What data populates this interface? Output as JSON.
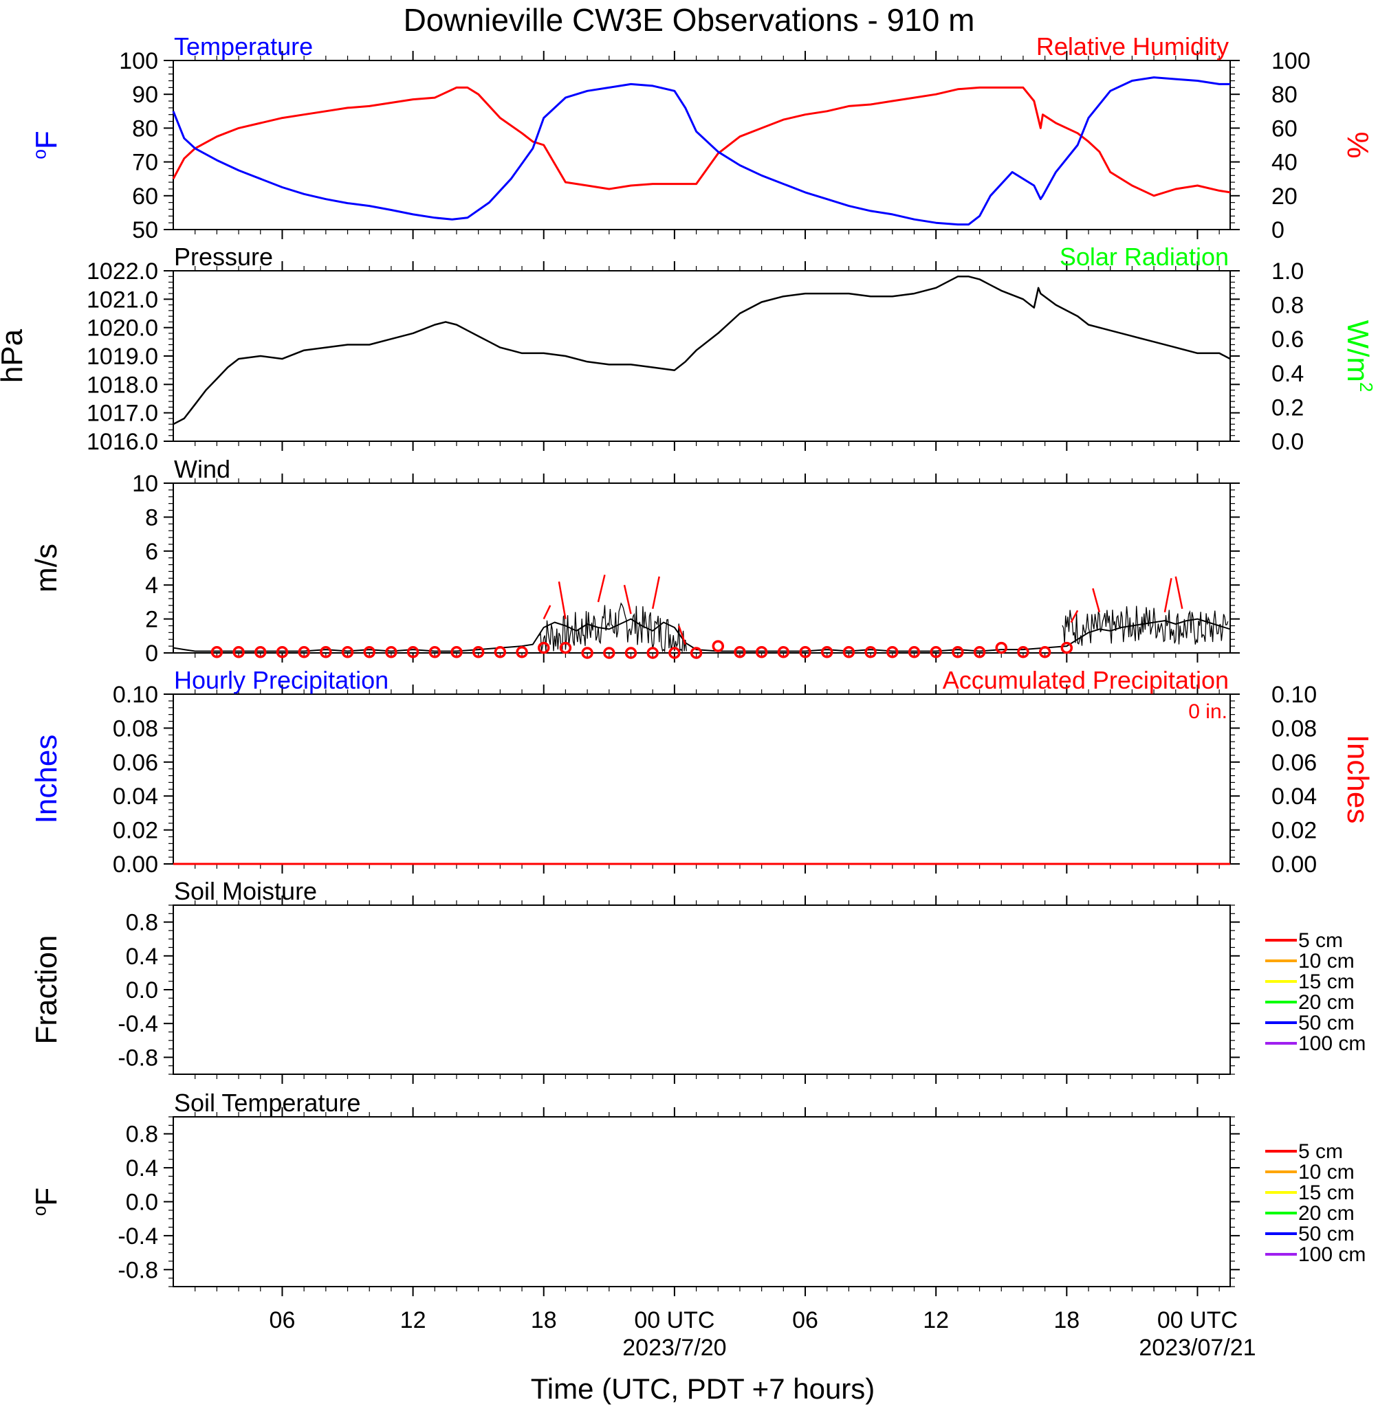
{
  "title": "Downieville CW3E Observations - 910 m",
  "x_axis": {
    "label": "Time (UTC, PDT +7 hours)",
    "range_hours": [
      0,
      48.5
    ],
    "ticks": [
      {
        "h": 5,
        "label": "06"
      },
      {
        "h": 11,
        "label": "12"
      },
      {
        "h": 17,
        "label": "18"
      },
      {
        "h": 23,
        "label": "00 UTC",
        "sublabel": "2023/7/20"
      },
      {
        "h": 29,
        "label": "06"
      },
      {
        "h": 35,
        "label": "12"
      },
      {
        "h": 41,
        "label": "18"
      },
      {
        "h": 47,
        "label": "00 UTC",
        "sublabel": "2023/07/21"
      }
    ]
  },
  "colors": {
    "temperature": "#0000ff",
    "humidity": "#ff0000",
    "pressure": "#000000",
    "solar": "#00ff00",
    "wind": "#000000",
    "wind_barb": "#ff0000",
    "hourly_precip": "#0000ff",
    "accum_precip": "#ff0000"
  },
  "panels": {
    "temp_rh": {
      "left_title": "Temperature",
      "right_title": "Relative Humidity",
      "left_unit": "oF",
      "right_unit": "%",
      "left_ticks": [
        "50",
        "60",
        "70",
        "80",
        "90",
        "100"
      ],
      "right_ticks": [
        "0",
        "20",
        "40",
        "60",
        "80",
        "100"
      ]
    },
    "pressure": {
      "left_title": "Pressure",
      "right_title": "Solar Radiation",
      "left_unit": "hPa",
      "right_unit": "W/m",
      "right_unit_sup": "2",
      "left_ticks": [
        "1016.0",
        "1017.0",
        "1018.0",
        "1019.0",
        "1020.0",
        "1021.0",
        "1022.0"
      ],
      "right_ticks": [
        "0.0",
        "0.2",
        "0.4",
        "0.6",
        "0.8",
        "1.0"
      ]
    },
    "wind": {
      "left_title": "Wind",
      "left_unit": "m/s",
      "left_ticks": [
        "0",
        "2",
        "4",
        "6",
        "8",
        "10"
      ]
    },
    "precip": {
      "left_title": "Hourly Precipitation",
      "right_title": "Accumulated Precipitation",
      "total_label": "0 in.",
      "left_unit": "Inches",
      "right_unit": "Inches",
      "left_ticks": [
        "0.00",
        "0.02",
        "0.04",
        "0.06",
        "0.08",
        "0.10"
      ],
      "right_ticks": [
        "0.00",
        "0.02",
        "0.04",
        "0.06",
        "0.08",
        "0.10"
      ]
    },
    "soil_moisture": {
      "left_title": "Soil Moisture",
      "left_unit": "Fraction",
      "left_ticks": [
        "-0.8",
        "-0.4",
        "0.0",
        "0.4",
        "0.8"
      ],
      "legend": [
        {
          "label": "5 cm",
          "color": "#ff0000"
        },
        {
          "label": "10 cm",
          "color": "#ffa500"
        },
        {
          "label": "15 cm",
          "color": "#ffff00"
        },
        {
          "label": "20 cm",
          "color": "#00ff00"
        },
        {
          "label": "50 cm",
          "color": "#0000ff"
        },
        {
          "label": "100 cm",
          "color": "#a020f0"
        }
      ]
    },
    "soil_temperature": {
      "left_title": "Soil Temperature",
      "left_unit": "oF",
      "left_ticks": [
        "-0.8",
        "-0.4",
        "0.0",
        "0.4",
        "0.8"
      ],
      "legend": [
        {
          "label": "5 cm",
          "color": "#ff0000"
        },
        {
          "label": "10 cm",
          "color": "#ffa500"
        },
        {
          "label": "15 cm",
          "color": "#ffff00"
        },
        {
          "label": "20 cm",
          "color": "#00ff00"
        },
        {
          "label": "50 cm",
          "color": "#0000ff"
        },
        {
          "label": "100 cm",
          "color": "#a020f0"
        }
      ]
    }
  },
  "chart_data": [
    {
      "type": "line",
      "title": "Temperature",
      "ylabel": "oF",
      "ylim": [
        50,
        100
      ],
      "series": [
        {
          "name": "Temperature",
          "x": [
            0,
            0.5,
            1,
            2,
            3,
            4,
            5,
            6,
            7,
            8,
            9,
            10,
            11,
            12,
            12.8,
            13.5,
            14.5,
            15.5,
            16.5,
            17,
            18,
            19,
            20,
            21,
            22,
            23,
            23.5,
            24,
            25,
            26,
            27,
            28,
            29,
            30,
            31,
            32,
            33,
            34,
            35,
            36,
            36.5,
            37,
            37.5,
            38.5,
            39.5,
            39.8,
            39.9,
            40.5,
            41.5,
            42,
            43,
            44,
            45,
            46,
            47,
            48,
            48.5
          ],
          "y": [
            85,
            77,
            74,
            70.5,
            67.5,
            65,
            62.5,
            60.5,
            59,
            57.8,
            57,
            55.8,
            54.5,
            53.5,
            53,
            53.5,
            58,
            65,
            74,
            83,
            89,
            91,
            92,
            93,
            92.5,
            91,
            86,
            79,
            73,
            69,
            66,
            63.5,
            61,
            59,
            57,
            55.5,
            54.5,
            53,
            52,
            51.5,
            51.5,
            54,
            60,
            67,
            63,
            59,
            60,
            67,
            75,
            83,
            91,
            94,
            95,
            94.5,
            94,
            93,
            93
          ]
        }
      ]
    },
    {
      "type": "line",
      "title": "Relative Humidity",
      "ylabel": "%",
      "ylim": [
        0,
        100
      ],
      "series": [
        {
          "name": "Relative Humidity",
          "x": [
            0,
            0.5,
            1,
            2,
            3,
            4,
            5,
            6,
            7,
            8,
            9,
            10,
            11,
            12,
            13,
            13.5,
            14,
            15,
            16,
            16.5,
            17,
            18,
            19,
            20,
            21,
            22,
            23,
            23.5,
            24,
            25,
            26,
            27,
            28,
            29,
            30,
            31,
            32,
            33,
            34,
            35,
            36,
            37,
            38,
            39,
            39.5,
            39.8,
            39.9,
            40.5,
            41.5,
            42,
            42.5,
            43,
            44,
            45,
            46,
            47,
            48,
            48.5
          ],
          "y": [
            30,
            42,
            48,
            55,
            60,
            63,
            66,
            68,
            70,
            72,
            73,
            75,
            77,
            78,
            84,
            84,
            80,
            66,
            57,
            52,
            50,
            28,
            26,
            24,
            26,
            27,
            27,
            27,
            27,
            45,
            55,
            60,
            65,
            68,
            70,
            73,
            74,
            76,
            78,
            80,
            83,
            84,
            84,
            84,
            76,
            60,
            68,
            63,
            57,
            52,
            46,
            34,
            26,
            20,
            24,
            26,
            23,
            22
          ]
        }
      ]
    },
    {
      "type": "line",
      "title": "Pressure",
      "ylabel": "hPa",
      "ylim": [
        1016.0,
        1022.0
      ],
      "series": [
        {
          "name": "Pressure",
          "x": [
            0,
            0.5,
            1,
            1.5,
            2,
            2.5,
            3,
            4,
            5,
            6,
            7,
            8,
            9,
            10,
            11,
            12,
            12.5,
            13,
            13.5,
            14,
            14.5,
            15,
            15.5,
            16,
            17,
            18,
            19,
            20,
            21,
            22,
            23,
            23.5,
            24,
            25,
            26,
            27,
            28,
            29,
            30,
            31,
            32,
            33,
            34,
            35,
            36,
            36.5,
            37,
            37.5,
            38,
            39,
            39.5,
            39.7,
            39.8,
            40.5,
            41.5,
            42,
            43,
            44,
            45,
            46,
            47,
            48,
            48.5
          ],
          "y": [
            1016.6,
            1016.8,
            1017.3,
            1017.8,
            1018.2,
            1018.6,
            1018.9,
            1019.0,
            1018.9,
            1019.2,
            1019.3,
            1019.4,
            1019.4,
            1019.6,
            1019.8,
            1020.1,
            1020.2,
            1020.1,
            1019.9,
            1019.7,
            1019.5,
            1019.3,
            1019.2,
            1019.1,
            1019.1,
            1019.0,
            1018.8,
            1018.7,
            1018.7,
            1018.6,
            1018.5,
            1018.8,
            1019.2,
            1019.8,
            1020.5,
            1020.9,
            1021.1,
            1021.2,
            1021.2,
            1021.2,
            1021.1,
            1021.1,
            1021.2,
            1021.4,
            1021.8,
            1021.8,
            1021.7,
            1021.5,
            1021.3,
            1021.0,
            1020.7,
            1021.4,
            1021.2,
            1020.8,
            1020.4,
            1020.1,
            1019.9,
            1019.7,
            1019.5,
            1019.3,
            1019.1,
            1019.1,
            1018.9
          ]
        }
      ]
    },
    {
      "type": "line",
      "title": "Solar Radiation",
      "ylabel": "W/m2",
      "ylim": [
        0.0,
        1.0
      ],
      "series": []
    },
    {
      "type": "line",
      "title": "Wind",
      "ylabel": "m/s",
      "ylim": [
        0,
        10
      ],
      "series": [
        {
          "name": "Wind",
          "x": [
            0,
            0.5,
            1,
            2,
            3,
            4,
            5,
            6,
            7,
            8,
            9,
            10,
            11,
            12,
            13,
            14,
            15,
            16,
            16.5,
            17,
            17.5,
            18,
            18.5,
            19,
            19.5,
            20,
            20.5,
            21,
            21.5,
            22,
            22.5,
            23,
            23.5,
            24,
            25,
            26,
            27,
            28,
            29,
            30,
            31,
            32,
            33,
            34,
            35,
            36,
            37,
            38,
            39,
            40,
            41,
            41.5,
            42,
            42.5,
            43,
            43.5,
            44,
            44.5,
            45,
            45.5,
            46,
            46.5,
            47,
            47.5,
            48,
            48.5
          ],
          "y": [
            0.3,
            0.2,
            0.1,
            0.1,
            0.1,
            0.1,
            0.1,
            0.1,
            0.2,
            0.1,
            0.2,
            0.1,
            0.2,
            0.1,
            0.1,
            0.2,
            0.3,
            0.4,
            0.5,
            1.5,
            1.8,
            1.6,
            1.3,
            1.7,
            1.5,
            1.4,
            1.7,
            2.0,
            1.6,
            1.3,
            1.8,
            1.5,
            0.6,
            0.2,
            0.1,
            0.1,
            0.1,
            0.1,
            0.1,
            0.2,
            0.1,
            0.2,
            0.1,
            0.1,
            0.1,
            0.2,
            0.1,
            0.2,
            0.2,
            0.3,
            0.4,
            0.8,
            1.2,
            1.4,
            1.3,
            1.5,
            1.6,
            1.7,
            1.8,
            1.9,
            1.7,
            1.9,
            2.0,
            1.8,
            1.6,
            1.4
          ]
        }
      ],
      "hourly_markers_x": [
        2,
        3,
        4,
        5,
        6,
        7,
        8,
        9,
        10,
        11,
        12,
        13,
        14,
        15,
        16,
        17,
        18,
        19,
        20,
        21,
        22,
        23,
        24,
        25,
        26,
        27,
        28,
        29,
        30,
        31,
        32,
        33,
        34,
        35,
        36,
        37,
        38,
        39,
        40,
        41
      ],
      "hourly_markers_y": [
        0.05,
        0.05,
        0.05,
        0.05,
        0.05,
        0.05,
        0.05,
        0.05,
        0.05,
        0.05,
        0.05,
        0.05,
        0.05,
        0.05,
        0.05,
        0.3,
        0.3,
        0,
        0,
        0,
        0,
        0,
        0,
        0.4,
        0.05,
        0.05,
        0.05,
        0.05,
        0.05,
        0.05,
        0.05,
        0.05,
        0.05,
        0.05,
        0.05,
        0.05,
        0.3,
        0.05,
        0.05,
        0.3
      ]
    },
    {
      "type": "line",
      "title": "Hourly Precipitation",
      "ylabel": "Inches",
      "ylim": [
        0.0,
        0.1
      ],
      "series": [
        {
          "name": "Hourly Precipitation",
          "x": [
            0,
            48.5
          ],
          "y": [
            0,
            0
          ]
        }
      ]
    },
    {
      "type": "line",
      "title": "Accumulated Precipitation",
      "ylabel": "Inches",
      "ylim": [
        0.0,
        0.1
      ],
      "series": [
        {
          "name": "Accumulated Precipitation",
          "x": [
            0,
            48.5
          ],
          "y": [
            0,
            0
          ]
        }
      ]
    },
    {
      "type": "line",
      "title": "Soil Moisture",
      "ylabel": "Fraction",
      "ylim": [
        -1.0,
        1.0
      ],
      "series": []
    },
    {
      "type": "line",
      "title": "Soil Temperature",
      "ylabel": "oF",
      "ylim": [
        -1.0,
        1.0
      ],
      "series": []
    }
  ]
}
